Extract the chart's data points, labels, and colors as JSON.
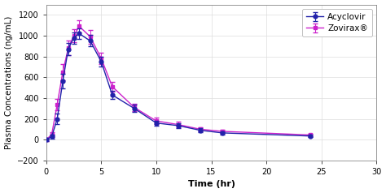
{
  "title": "",
  "xlabel": "Time (hr)",
  "ylabel": "Plasma Concentrations (ng/mL)",
  "xlim": [
    0,
    30
  ],
  "ylim": [
    -200,
    1300
  ],
  "yticks": [
    -200,
    0,
    200,
    400,
    600,
    800,
    1000,
    1200
  ],
  "xticks": [
    0,
    5,
    10,
    15,
    20,
    25,
    30
  ],
  "acyclovir": {
    "time": [
      0,
      0.5,
      1.0,
      1.5,
      2.0,
      2.5,
      3.0,
      4.0,
      5.0,
      6.0,
      8.0,
      10.0,
      12.0,
      14.0,
      16.0,
      24.0
    ],
    "conc": [
      0,
      30,
      200,
      560,
      870,
      980,
      1020,
      950,
      750,
      430,
      300,
      160,
      135,
      90,
      65,
      35
    ],
    "err": [
      10,
      20,
      50,
      70,
      60,
      55,
      50,
      55,
      50,
      40,
      35,
      25,
      25,
      20,
      18,
      12
    ],
    "color": "#2222aa",
    "marker": "o",
    "markersize": 3.5,
    "label": "Acyclovir"
  },
  "zovirax": {
    "time": [
      0,
      0.5,
      1.0,
      1.5,
      2.0,
      2.5,
      3.0,
      4.0,
      5.0,
      6.0,
      8.0,
      10.0,
      12.0,
      14.0,
      16.0,
      24.0
    ],
    "conc": [
      0,
      50,
      340,
      650,
      880,
      1000,
      1090,
      990,
      780,
      510,
      310,
      180,
      145,
      100,
      80,
      45
    ],
    "err": [
      10,
      25,
      55,
      80,
      70,
      65,
      60,
      65,
      55,
      45,
      35,
      30,
      25,
      22,
      18,
      14
    ],
    "color": "#cc22cc",
    "marker": "s",
    "markersize": 3.5,
    "label": "Zovirax®"
  },
  "legend_fontsize": 7.5,
  "axis_label_fontsize": 8,
  "ylabel_fontsize": 7.5,
  "tick_fontsize": 7
}
